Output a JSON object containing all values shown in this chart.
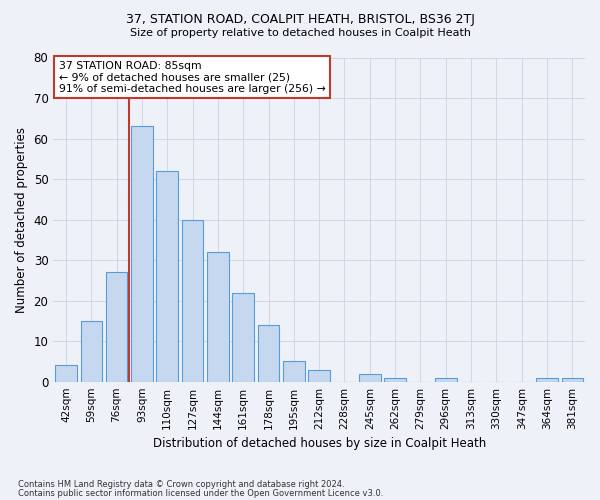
{
  "title1": "37, STATION ROAD, COALPIT HEATH, BRISTOL, BS36 2TJ",
  "title2": "Size of property relative to detached houses in Coalpit Heath",
  "xlabel": "Distribution of detached houses by size in Coalpit Heath",
  "ylabel": "Number of detached properties",
  "footnote1": "Contains HM Land Registry data © Crown copyright and database right 2024.",
  "footnote2": "Contains public sector information licensed under the Open Government Licence v3.0.",
  "categories": [
    "42sqm",
    "59sqm",
    "76sqm",
    "93sqm",
    "110sqm",
    "127sqm",
    "144sqm",
    "161sqm",
    "178sqm",
    "195sqm",
    "212sqm",
    "228sqm",
    "245sqm",
    "262sqm",
    "279sqm",
    "296sqm",
    "313sqm",
    "330sqm",
    "347sqm",
    "364sqm",
    "381sqm"
  ],
  "values": [
    4,
    15,
    27,
    63,
    52,
    40,
    32,
    22,
    14,
    5,
    3,
    0,
    2,
    1,
    0,
    1,
    0,
    0,
    0,
    1,
    1
  ],
  "bar_color": "#c5d8f0",
  "bar_edge_color": "#5a9bd5",
  "grid_color": "#d0d8e8",
  "background_color": "#eef2f8",
  "vline_x": 2.5,
  "vline_color": "#c0392b",
  "annotation_text": "37 STATION ROAD: 85sqm\n← 9% of detached houses are smaller (25)\n91% of semi-detached houses are larger (256) →",
  "annotation_box_color": "#ffffff",
  "annotation_box_edge": "#c0392b",
  "ylim": [
    0,
    80
  ],
  "yticks": [
    0,
    10,
    20,
    30,
    40,
    50,
    60,
    70,
    80
  ]
}
